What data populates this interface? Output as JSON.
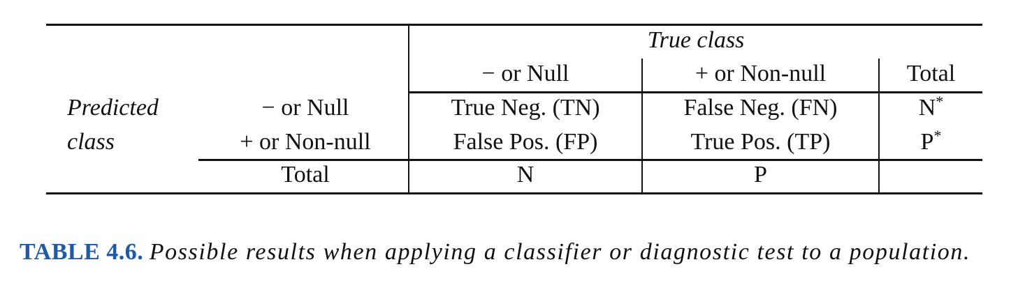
{
  "table": {
    "col_group_header": "True class",
    "col_headers": [
      "− or Null",
      "+ or Non-null",
      "Total"
    ],
    "row_group_label": [
      "Predicted",
      "class"
    ],
    "row_headers": [
      "− or Null",
      "+ or Non-null",
      "Total"
    ],
    "cells": [
      [
        "True Neg. (TN)",
        "False Neg. (FN)",
        "N"
      ],
      [
        "False Pos. (FP)",
        "True Pos. (TP)",
        "P"
      ],
      [
        "N",
        "P",
        ""
      ]
    ],
    "star_superscript": "*"
  },
  "caption": {
    "label": "TABLE 4.6.",
    "text": "Possible results when applying a classifier or diagnostic test to a population."
  },
  "colors": {
    "caption_label": "#1f5aa6",
    "text": "#111111",
    "rules": "#111111"
  }
}
